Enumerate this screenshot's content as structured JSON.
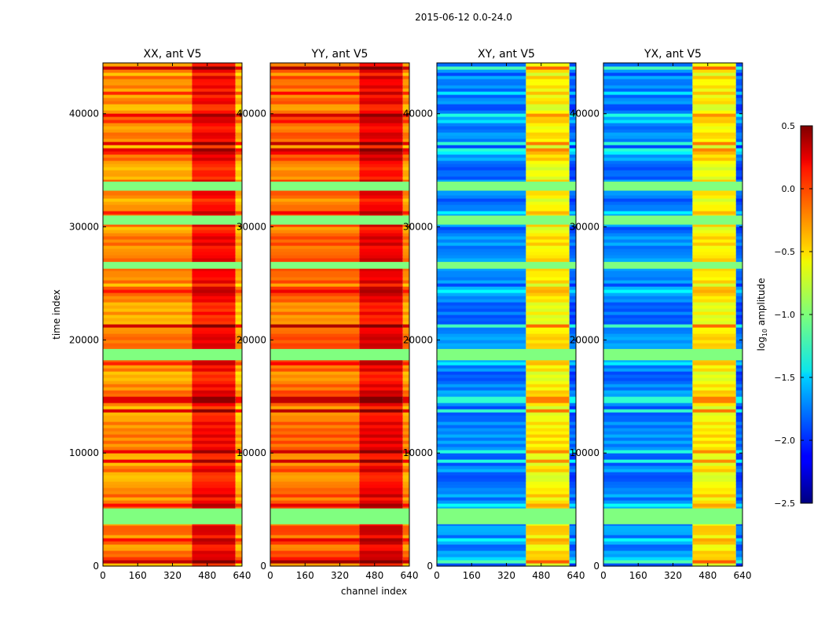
{
  "figure": {
    "suptitle": "2015-06-12 0.0-24.0",
    "ylabel": "time index",
    "xlabel": "channel index"
  },
  "colorbar": {
    "label_prefix": "log",
    "label_sub": "10",
    "label_suffix": " amplitude",
    "range": [
      -2.5,
      0.5
    ],
    "ticks": [
      "0.5",
      "0.0",
      "−0.5",
      "−1.0",
      "−1.5",
      "−2.0",
      "−2.5"
    ],
    "tick_values": [
      0.5,
      0.0,
      -0.5,
      -1.0,
      -1.5,
      -2.0,
      -2.5
    ],
    "colormap": "jet"
  },
  "chart_data": [
    {
      "type": "heatmap",
      "title": "XX, ant V5",
      "x_range": [
        0,
        640
      ],
      "y_range": [
        0,
        44500
      ],
      "x_ticks": [
        "0",
        "160",
        "320",
        "480",
        "640"
      ],
      "x_tick_values": [
        0,
        160,
        320,
        480,
        640
      ],
      "y_ticks": [
        "0",
        "10000",
        "20000",
        "30000",
        "40000"
      ],
      "y_tick_values": [
        0,
        10000,
        20000,
        30000,
        40000
      ],
      "base_level": -0.3,
      "band_channels": [
        410,
        610
      ],
      "band_level": 0.1
    },
    {
      "type": "heatmap",
      "title": "YY, ant V5",
      "x_range": [
        0,
        640
      ],
      "y_range": [
        0,
        44500
      ],
      "x_ticks": [
        "0",
        "160",
        "320",
        "480",
        "640"
      ],
      "x_tick_values": [
        0,
        160,
        320,
        480,
        640
      ],
      "y_ticks": [
        "0",
        "10000",
        "20000",
        "30000",
        "40000"
      ],
      "y_tick_values": [
        0,
        10000,
        20000,
        30000,
        40000
      ],
      "base_level": -0.2,
      "band_channels": [
        410,
        610
      ],
      "band_level": 0.15
    },
    {
      "type": "heatmap",
      "title": "XY, ant V5",
      "x_range": [
        0,
        640
      ],
      "y_range": [
        0,
        44500
      ],
      "x_ticks": [
        "0",
        "160",
        "320",
        "480",
        "640"
      ],
      "x_tick_values": [
        0,
        160,
        320,
        480,
        640
      ],
      "y_ticks": [
        "0",
        "10000",
        "20000",
        "30000",
        "40000"
      ],
      "y_tick_values": [
        0,
        10000,
        20000,
        30000,
        40000
      ],
      "base_level": -1.75,
      "band_channels": [
        410,
        610
      ],
      "band_level": -0.6
    },
    {
      "type": "heatmap",
      "title": "YX, ant V5",
      "x_range": [
        0,
        640
      ],
      "y_range": [
        0,
        44500
      ],
      "x_ticks": [
        "0",
        "160",
        "320",
        "480",
        "640"
      ],
      "x_tick_values": [
        0,
        160,
        320,
        480,
        640
      ],
      "y_ticks": [
        "0",
        "10000",
        "20000",
        "30000",
        "40000"
      ],
      "y_tick_values": [
        0,
        10000,
        20000,
        30000,
        40000
      ],
      "base_level": -1.75,
      "band_channels": [
        410,
        610
      ],
      "band_level": -0.6
    }
  ],
  "flagged_rows": [
    {
      "y0": 3700,
      "y1": 5100
    },
    {
      "y0": 30200,
      "y1": 31000
    },
    {
      "y0": 33200,
      "y1": 34000
    },
    {
      "y0": 26300,
      "y1": 26900
    },
    {
      "y0": 18200,
      "y1": 19200
    }
  ]
}
